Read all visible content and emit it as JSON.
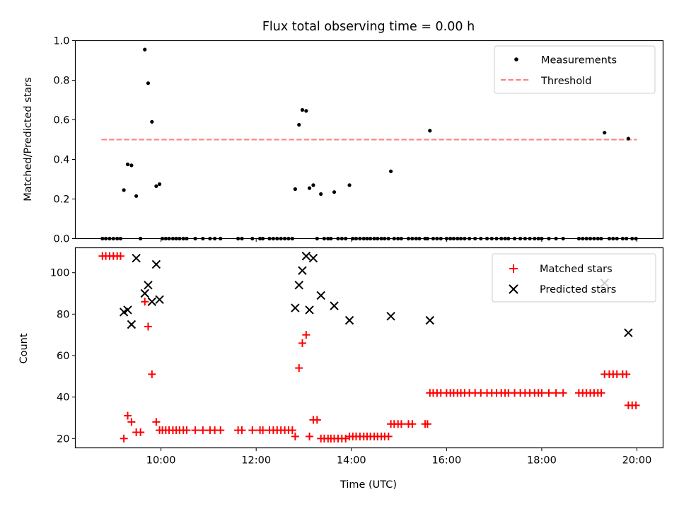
{
  "title": "Flux total observing time = 0.00 h",
  "colors": {
    "measurement": "#000000",
    "threshold": "#ff7f7f",
    "matched": "#ff0000",
    "predicted": "#000000"
  },
  "chart_data": [
    {
      "type": "scatter",
      "ylabel": "Matched/Predicted stars",
      "xlim": [
        8.2,
        20.55
      ],
      "ylim": [
        0,
        1
      ],
      "yticks": [
        "0.0",
        "0.2",
        "0.4",
        "0.6",
        "0.8",
        "1.0"
      ],
      "legend": {
        "position": "top-right",
        "labels": [
          "Measurements",
          "Threshold"
        ]
      },
      "threshold": {
        "name": "Threshold",
        "value": 0.5,
        "x_range": [
          8.75,
          20.0
        ]
      },
      "series": [
        {
          "name": "Measurements",
          "points": [
            [
              8.77,
              0
            ],
            [
              8.84,
              0
            ],
            [
              8.92,
              0
            ],
            [
              9.0,
              0
            ],
            [
              9.08,
              0
            ],
            [
              9.15,
              0
            ],
            [
              9.22,
              0.245
            ],
            [
              9.3,
              0.375
            ],
            [
              9.38,
              0.37
            ],
            [
              9.48,
              0.215
            ],
            [
              9.57,
              0
            ],
            [
              9.66,
              0.955
            ],
            [
              9.73,
              0.785
            ],
            [
              9.81,
              0.59
            ],
            [
              9.9,
              0.265
            ],
            [
              9.97,
              0.275
            ],
            [
              10.03,
              0
            ],
            [
              10.1,
              0
            ],
            [
              10.17,
              0
            ],
            [
              10.25,
              0
            ],
            [
              10.32,
              0
            ],
            [
              10.39,
              0
            ],
            [
              10.47,
              0
            ],
            [
              10.54,
              0
            ],
            [
              10.72,
              0
            ],
            [
              10.88,
              0
            ],
            [
              11.03,
              0
            ],
            [
              11.13,
              0
            ],
            [
              11.25,
              0
            ],
            [
              11.62,
              0
            ],
            [
              11.7,
              0
            ],
            [
              11.92,
              0
            ],
            [
              12.08,
              0
            ],
            [
              12.14,
              0
            ],
            [
              12.28,
              0
            ],
            [
              12.36,
              0
            ],
            [
              12.44,
              0
            ],
            [
              12.52,
              0
            ],
            [
              12.6,
              0
            ],
            [
              12.68,
              0
            ],
            [
              12.76,
              0
            ],
            [
              12.82,
              0.25
            ],
            [
              12.9,
              0.575
            ],
            [
              12.97,
              0.65
            ],
            [
              13.05,
              0.645
            ],
            [
              13.12,
              0.255
            ],
            [
              13.2,
              0.27
            ],
            [
              13.28,
              0
            ],
            [
              13.36,
              0.225
            ],
            [
              13.43,
              0
            ],
            [
              13.51,
              0
            ],
            [
              13.57,
              0
            ],
            [
              13.64,
              0.235
            ],
            [
              13.72,
              0
            ],
            [
              13.8,
              0
            ],
            [
              13.88,
              0
            ],
            [
              13.96,
              0.27
            ],
            [
              14.03,
              0
            ],
            [
              14.1,
              0
            ],
            [
              14.18,
              0
            ],
            [
              14.26,
              0
            ],
            [
              14.33,
              0
            ],
            [
              14.4,
              0
            ],
            [
              14.48,
              0
            ],
            [
              14.55,
              0
            ],
            [
              14.63,
              0
            ],
            [
              14.7,
              0
            ],
            [
              14.78,
              0
            ],
            [
              14.83,
              0.34
            ],
            [
              14.9,
              0
            ],
            [
              14.98,
              0
            ],
            [
              15.05,
              0
            ],
            [
              15.2,
              0
            ],
            [
              15.28,
              0
            ],
            [
              15.36,
              0
            ],
            [
              15.43,
              0
            ],
            [
              15.55,
              0
            ],
            [
              15.6,
              0
            ],
            [
              15.65,
              0.545
            ],
            [
              15.72,
              0
            ],
            [
              15.8,
              0
            ],
            [
              15.88,
              0
            ],
            [
              16.0,
              0
            ],
            [
              16.08,
              0
            ],
            [
              16.15,
              0
            ],
            [
              16.23,
              0
            ],
            [
              16.3,
              0
            ],
            [
              16.38,
              0
            ],
            [
              16.48,
              0
            ],
            [
              16.6,
              0
            ],
            [
              16.72,
              0
            ],
            [
              16.85,
              0
            ],
            [
              16.95,
              0
            ],
            [
              17.05,
              0
            ],
            [
              17.15,
              0
            ],
            [
              17.23,
              0
            ],
            [
              17.3,
              0
            ],
            [
              17.43,
              0
            ],
            [
              17.55,
              0
            ],
            [
              17.65,
              0
            ],
            [
              17.75,
              0
            ],
            [
              17.85,
              0
            ],
            [
              17.93,
              0
            ],
            [
              18.0,
              0
            ],
            [
              18.15,
              0
            ],
            [
              18.3,
              0
            ],
            [
              18.45,
              0
            ],
            [
              18.78,
              0
            ],
            [
              18.86,
              0
            ],
            [
              18.94,
              0
            ],
            [
              19.02,
              0
            ],
            [
              19.1,
              0
            ],
            [
              19.18,
              0
            ],
            [
              19.25,
              0
            ],
            [
              19.32,
              0.535
            ],
            [
              19.42,
              0
            ],
            [
              19.5,
              0
            ],
            [
              19.58,
              0
            ],
            [
              19.7,
              0
            ],
            [
              19.78,
              0
            ],
            [
              19.82,
              0.505
            ],
            [
              19.9,
              0
            ],
            [
              19.98,
              0
            ]
          ]
        }
      ]
    },
    {
      "type": "scatter",
      "xlabel": "Time (UTC)",
      "ylabel": "Count",
      "xlim": [
        8.2,
        20.55
      ],
      "ylim": [
        15.5,
        112
      ],
      "yticks": [
        "20",
        "40",
        "60",
        "80",
        "100"
      ],
      "xticks": [
        "10:00",
        "12:00",
        "14:00",
        "16:00",
        "18:00",
        "20:00"
      ],
      "legend": {
        "position": "top-right",
        "labels": [
          "Matched stars",
          "Predicted stars"
        ]
      },
      "series": [
        {
          "name": "Matched stars",
          "points": [
            [
              8.77,
              108
            ],
            [
              8.84,
              108
            ],
            [
              8.92,
              108
            ],
            [
              9.0,
              108
            ],
            [
              9.08,
              108
            ],
            [
              9.15,
              108
            ],
            [
              9.22,
              20
            ],
            [
              9.3,
              31
            ],
            [
              9.38,
              28
            ],
            [
              9.48,
              23
            ],
            [
              9.57,
              23
            ],
            [
              9.66,
              86
            ],
            [
              9.73,
              74
            ],
            [
              9.81,
              51
            ],
            [
              9.9,
              28
            ],
            [
              9.97,
              24
            ],
            [
              10.03,
              24
            ],
            [
              10.1,
              24
            ],
            [
              10.17,
              24
            ],
            [
              10.25,
              24
            ],
            [
              10.32,
              24
            ],
            [
              10.39,
              24
            ],
            [
              10.47,
              24
            ],
            [
              10.54,
              24
            ],
            [
              10.72,
              24
            ],
            [
              10.88,
              24
            ],
            [
              11.03,
              24
            ],
            [
              11.13,
              24
            ],
            [
              11.25,
              24
            ],
            [
              11.62,
              24
            ],
            [
              11.7,
              24
            ],
            [
              11.92,
              24
            ],
            [
              12.08,
              24
            ],
            [
              12.14,
              24
            ],
            [
              12.28,
              24
            ],
            [
              12.36,
              24
            ],
            [
              12.44,
              24
            ],
            [
              12.52,
              24
            ],
            [
              12.6,
              24
            ],
            [
              12.68,
              24
            ],
            [
              12.76,
              24
            ],
            [
              12.82,
              21
            ],
            [
              12.9,
              54
            ],
            [
              12.97,
              66
            ],
            [
              13.05,
              70
            ],
            [
              13.12,
              21
            ],
            [
              13.2,
              29
            ],
            [
              13.28,
              29
            ],
            [
              13.36,
              20
            ],
            [
              13.43,
              20
            ],
            [
              13.51,
              20
            ],
            [
              13.57,
              20
            ],
            [
              13.64,
              20
            ],
            [
              13.72,
              20
            ],
            [
              13.8,
              20
            ],
            [
              13.88,
              20
            ],
            [
              13.96,
              21
            ],
            [
              14.03,
              21
            ],
            [
              14.1,
              21
            ],
            [
              14.18,
              21
            ],
            [
              14.26,
              21
            ],
            [
              14.33,
              21
            ],
            [
              14.4,
              21
            ],
            [
              14.48,
              21
            ],
            [
              14.55,
              21
            ],
            [
              14.63,
              21
            ],
            [
              14.7,
              21
            ],
            [
              14.78,
              21
            ],
            [
              14.83,
              27
            ],
            [
              14.9,
              27
            ],
            [
              14.98,
              27
            ],
            [
              15.05,
              27
            ],
            [
              15.2,
              27
            ],
            [
              15.28,
              27
            ],
            [
              15.55,
              27
            ],
            [
              15.6,
              27
            ],
            [
              15.65,
              42
            ],
            [
              15.72,
              42
            ],
            [
              15.8,
              42
            ],
            [
              15.88,
              42
            ],
            [
              16.0,
              42
            ],
            [
              16.08,
              42
            ],
            [
              16.15,
              42
            ],
            [
              16.23,
              42
            ],
            [
              16.3,
              42
            ],
            [
              16.38,
              42
            ],
            [
              16.48,
              42
            ],
            [
              16.6,
              42
            ],
            [
              16.72,
              42
            ],
            [
              16.85,
              42
            ],
            [
              16.95,
              42
            ],
            [
              17.05,
              42
            ],
            [
              17.15,
              42
            ],
            [
              17.23,
              42
            ],
            [
              17.3,
              42
            ],
            [
              17.43,
              42
            ],
            [
              17.55,
              42
            ],
            [
              17.65,
              42
            ],
            [
              17.75,
              42
            ],
            [
              17.85,
              42
            ],
            [
              17.93,
              42
            ],
            [
              18.0,
              42
            ],
            [
              18.15,
              42
            ],
            [
              18.3,
              42
            ],
            [
              18.45,
              42
            ],
            [
              18.78,
              42
            ],
            [
              18.86,
              42
            ],
            [
              18.94,
              42
            ],
            [
              19.02,
              42
            ],
            [
              19.1,
              42
            ],
            [
              19.18,
              42
            ],
            [
              19.25,
              42
            ],
            [
              19.32,
              51
            ],
            [
              19.42,
              51
            ],
            [
              19.5,
              51
            ],
            [
              19.58,
              51
            ],
            [
              19.7,
              51
            ],
            [
              19.78,
              51
            ],
            [
              19.82,
              36
            ],
            [
              19.9,
              36
            ],
            [
              19.98,
              36
            ]
          ]
        },
        {
          "name": "Predicted stars",
          "points": [
            [
              9.22,
              81
            ],
            [
              9.3,
              82
            ],
            [
              9.38,
              75
            ],
            [
              9.48,
              107
            ],
            [
              9.66,
              90
            ],
            [
              9.73,
              94
            ],
            [
              9.81,
              86
            ],
            [
              9.9,
              104
            ],
            [
              9.97,
              87
            ],
            [
              12.82,
              83
            ],
            [
              12.9,
              94
            ],
            [
              12.97,
              101
            ],
            [
              13.05,
              108
            ],
            [
              13.12,
              82
            ],
            [
              13.2,
              107
            ],
            [
              13.36,
              89
            ],
            [
              13.64,
              84
            ],
            [
              13.96,
              77
            ],
            [
              14.83,
              79
            ],
            [
              15.65,
              77
            ],
            [
              19.32,
              95
            ],
            [
              19.82,
              71
            ]
          ]
        }
      ]
    }
  ]
}
